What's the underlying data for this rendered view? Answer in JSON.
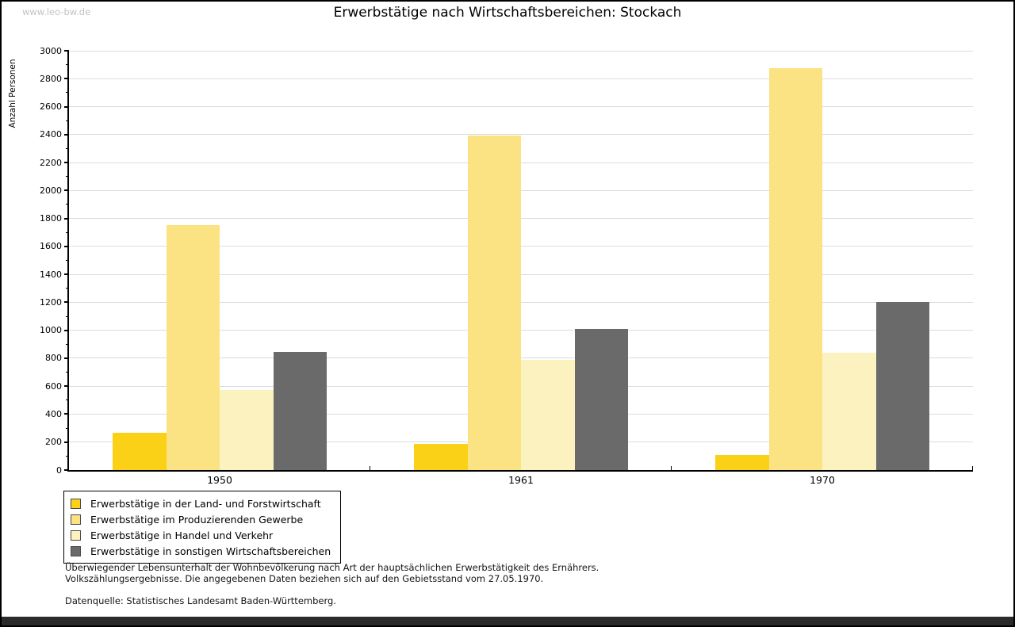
{
  "watermark": "www.leo-bw.de",
  "title": "Erwerbstätige nach Wirtschaftsbereichen: Stockach",
  "chart_data": {
    "type": "bar",
    "title": "Erwerbstätige nach Wirtschaftsbereichen: Stockach",
    "xlabel": "",
    "ylabel": "Anzahl Personen",
    "categories": [
      "1950",
      "1961",
      "1970"
    ],
    "series": [
      {
        "name": "Erwerbstätige in der Land- und Forstwirtschaft",
        "color": "#FBD117",
        "values": [
          265,
          185,
          110
        ]
      },
      {
        "name": "Erwerbstätige im Produzierenden Gewerbe",
        "color": "#FBE383",
        "values": [
          1755,
          2395,
          2875
        ]
      },
      {
        "name": "Erwerbstätige in Handel und Verkehr",
        "color": "#FBF2BF",
        "values": [
          575,
          790,
          840
        ]
      },
      {
        "name": "Erwerbstätige in sonstigen Wirtschaftsbereichen",
        "color": "#6A6A6A",
        "values": [
          845,
          1010,
          1205
        ]
      }
    ],
    "ylim": [
      0,
      3000
    ],
    "ytick_step": 200,
    "minor_tick_step": 100,
    "grid": true,
    "legend_position": "bottom-left",
    "grid_color": "#dcdcdc",
    "axis_color": "#000000"
  },
  "footnotes": {
    "line1": "Überwiegender Lebensunterhalt der Wohnbevölkerung nach Art der hauptsächlichen Erwerbstätigkeit des Ernährers.",
    "line2": "Volkszählungsergebnisse. Die angegebenen Daten beziehen sich auf den Gebietsstand vom 27.05.1970.",
    "source": "Datenquelle: Statistisches Landesamt Baden-Württemberg."
  }
}
